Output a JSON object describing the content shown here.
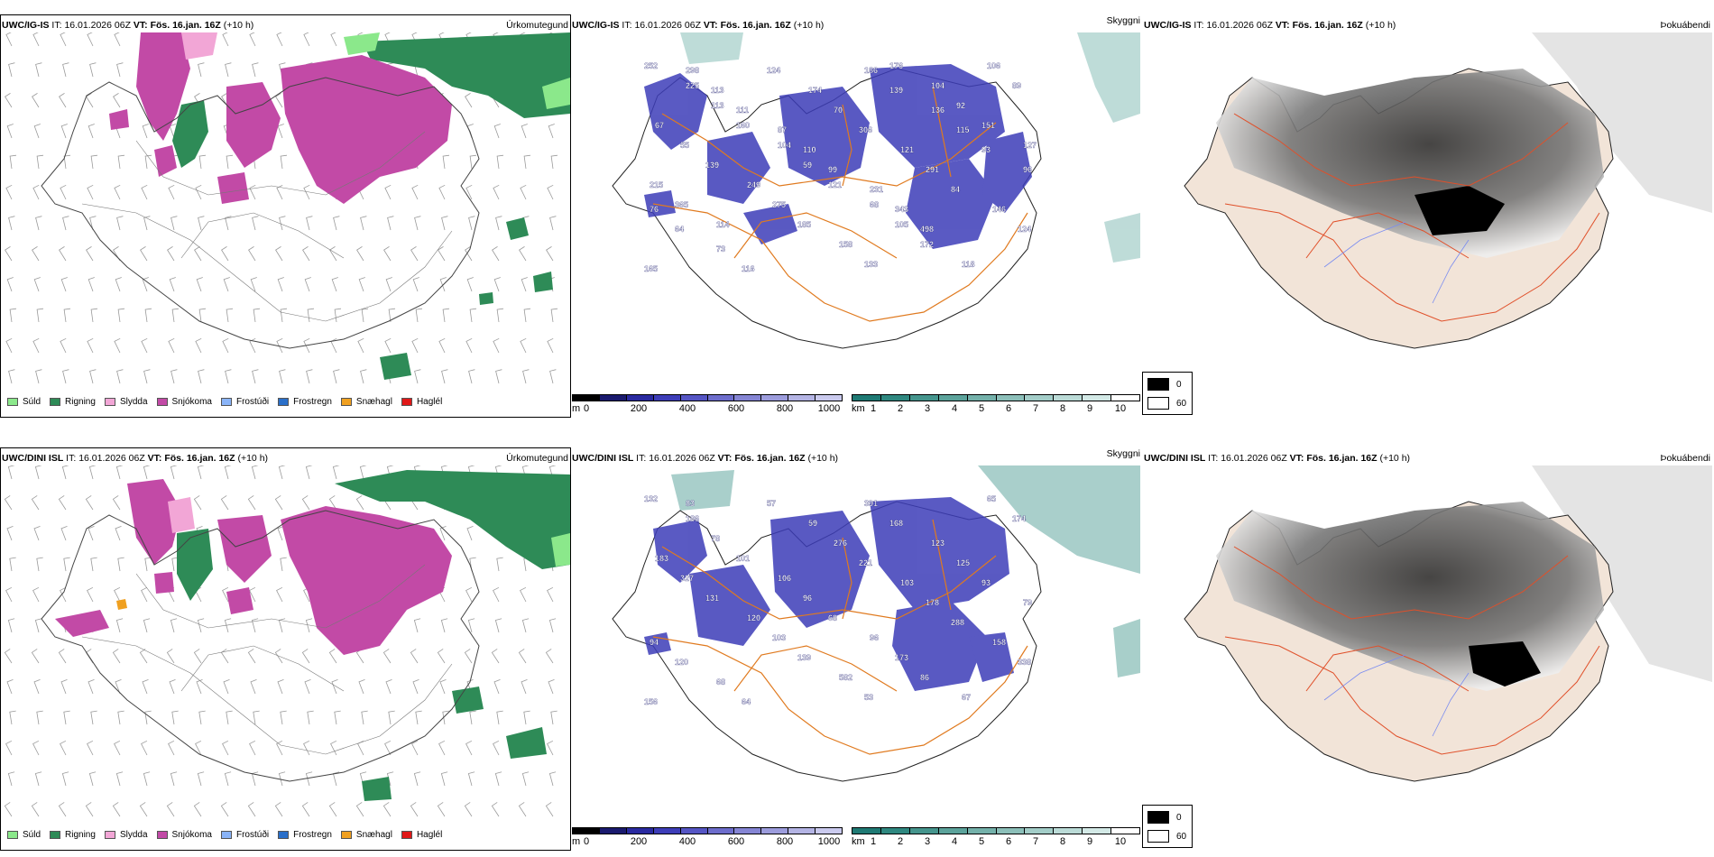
{
  "rows": [
    {
      "model": "UWC/IG-IS",
      "it_label": "IT:",
      "it_value": "16.01.2026 06Z",
      "vt_label": "VT:",
      "vt_value": "Fös. 16.jan. 16Z",
      "lead": "(+10 h)"
    },
    {
      "model": "UWC/DINI ISL",
      "it_label": "IT:",
      "it_value": "16.01.2026 06Z",
      "vt_label": "VT:",
      "vt_value": "Fös. 16.jan. 16Z",
      "lead": "(+10 h)"
    }
  ],
  "panel_titles": {
    "precip_type": "Úrkomutegund",
    "visibility": "Skyggni",
    "fog": "Þokuábendi"
  },
  "precip_legend": [
    {
      "label": "Súld",
      "color": "#8be88b"
    },
    {
      "label": "Rigning",
      "color": "#2e8b57"
    },
    {
      "label": "Slydda",
      "color": "#f2a6d6"
    },
    {
      "label": "Snjókoma",
      "color": "#c24aa6"
    },
    {
      "label": "Frostúði",
      "color": "#8ab4f8"
    },
    {
      "label": "Frostregn",
      "color": "#2a6fc9"
    },
    {
      "label": "Snæhagl",
      "color": "#f0a020"
    },
    {
      "label": "Haglél",
      "color": "#e01818"
    }
  ],
  "cloudbase_bar": {
    "unit": "m",
    "ticks": [
      "0",
      "200",
      "400",
      "600",
      "800",
      "1000"
    ],
    "colors": [
      "#000000",
      "#1a1a6e",
      "#2a2aa0",
      "#3d3db8",
      "#5555c4",
      "#6d6dcc",
      "#8585d4",
      "#9c9cdc",
      "#b4b4e4",
      "#cacaee"
    ]
  },
  "vis_bar": {
    "unit": "km",
    "ticks": [
      "1",
      "2",
      "3",
      "4",
      "5",
      "6",
      "7",
      "8",
      "9",
      "10"
    ],
    "colors": [
      "#1f7a74",
      "#2f8880",
      "#45958d",
      "#5ca39b",
      "#74b1aa",
      "#8cbfb9",
      "#a3cdc8",
      "#bbdbd7",
      "#d3e9e6",
      "#ffffff"
    ]
  },
  "fog_legend": [
    {
      "label": "0",
      "color": "#000000"
    },
    {
      "label": "60",
      "color": "#ffffff"
    }
  ],
  "vis_labels": [
    [
      "252",
      "186",
      "225",
      "139",
      "113",
      "136",
      "160",
      "115",
      "104",
      "93",
      "59",
      "96",
      "121",
      "76",
      "68",
      "64",
      "105",
      "73",
      "172",
      "116",
      "118",
      "124",
      "106",
      "174",
      "89",
      "70",
      "67",
      "306",
      "55",
      "121",
      "139",
      "291",
      "249",
      "84",
      "275",
      "146",
      "185",
      "124",
      "158",
      "165",
      "133",
      "298",
      "176",
      "113",
      "104",
      "111",
      "92",
      "87",
      "151",
      "110",
      "127",
      "99",
      "215",
      "231",
      "365",
      "343",
      "114",
      "498"
    ],
    [
      "132",
      "391",
      "186",
      "168",
      "78",
      "123",
      "101",
      "125",
      "106",
      "93",
      "96",
      "79",
      "68",
      "94",
      "96",
      "120",
      "173",
      "68",
      "86",
      "64",
      "67",
      "57",
      "65",
      "59",
      "174",
      "276",
      "183",
      "221",
      "327",
      "103",
      "131",
      "178",
      "120",
      "288",
      "103",
      "158",
      "139",
      "338",
      "582",
      "156",
      "53",
      "83"
    ]
  ]
}
